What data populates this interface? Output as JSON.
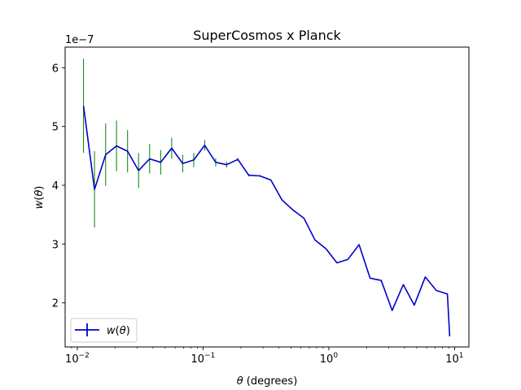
{
  "chart_data": {
    "type": "line",
    "title": "SuperCosmos x Planck",
    "xlabel": "θ (degrees)",
    "ylabel": "w(θ)",
    "x_scale": "log",
    "xlim": [
      0.008,
      13
    ],
    "ylim": [
      1.25e-07,
      6.35e-07
    ],
    "offset_text": "1e−7",
    "x_ticks": [
      {
        "value": 0.01,
        "base": "10",
        "exp": "−2"
      },
      {
        "value": 0.1,
        "base": "10",
        "exp": "−1"
      },
      {
        "value": 1,
        "base": "10",
        "exp": "0"
      },
      {
        "value": 10,
        "base": "10",
        "exp": "1"
      }
    ],
    "y_ticks": [
      {
        "value": 2e-07,
        "label": "2"
      },
      {
        "value": 3e-07,
        "label": "3"
      },
      {
        "value": 4e-07,
        "label": "4"
      },
      {
        "value": 5e-07,
        "label": "5"
      },
      {
        "value": 6e-07,
        "label": "6"
      }
    ],
    "grid": false,
    "legend": {
      "position": "lower-left",
      "label": "w(θ)"
    },
    "series": [
      {
        "name": "w(θ)",
        "color": "#0000cc",
        "errorbar_color": "#008000",
        "x": [
          0.0112,
          0.0137,
          0.0168,
          0.0205,
          0.0251,
          0.0307,
          0.0376,
          0.046,
          0.0563,
          0.0689,
          0.0843,
          0.103,
          0.126,
          0.154,
          0.189,
          0.231,
          0.283,
          0.346,
          0.424,
          0.518,
          0.634,
          0.776,
          0.95,
          1.16,
          1.42,
          1.74,
          2.13,
          2.61,
          3.19,
          3.91,
          4.78,
          5.85,
          7.16,
          8.77
        ],
        "y": [
          5.35e-07,
          3.93e-07,
          4.52e-07,
          4.67e-07,
          4.58e-07,
          4.25e-07,
          4.45e-07,
          4.39e-07,
          4.63e-07,
          4.37e-07,
          4.43e-07,
          4.68e-07,
          4.39e-07,
          4.35e-07,
          4.44e-07,
          4.17e-07,
          4.16e-07,
          4.09e-07,
          3.75e-07,
          3.58e-07,
          3.44e-07,
          3.07e-07,
          2.92e-07,
          2.68e-07,
          2.74e-07,
          2.99e-07,
          2.42e-07,
          2.38e-07,
          1.87e-07,
          2.31e-07,
          1.96e-07,
          2.44e-07,
          2.21e-07,
          2.15e-07
        ],
        "x_end": 9.15,
        "y_end": 1.43e-07,
        "error": [
          8e-08,
          6.5e-08,
          5.3e-08,
          4.3e-08,
          3.6e-08,
          3e-08,
          2.5e-08,
          2.1e-08,
          1.8e-08,
          1.5e-08,
          1.2e-08,
          9e-09,
          7e-09,
          5e-09,
          3e-09,
          2e-09,
          1.5e-09,
          0,
          0,
          0,
          0,
          0,
          0,
          0,
          0,
          0,
          0,
          0,
          0,
          0,
          0,
          0,
          0,
          0
        ]
      }
    ]
  }
}
